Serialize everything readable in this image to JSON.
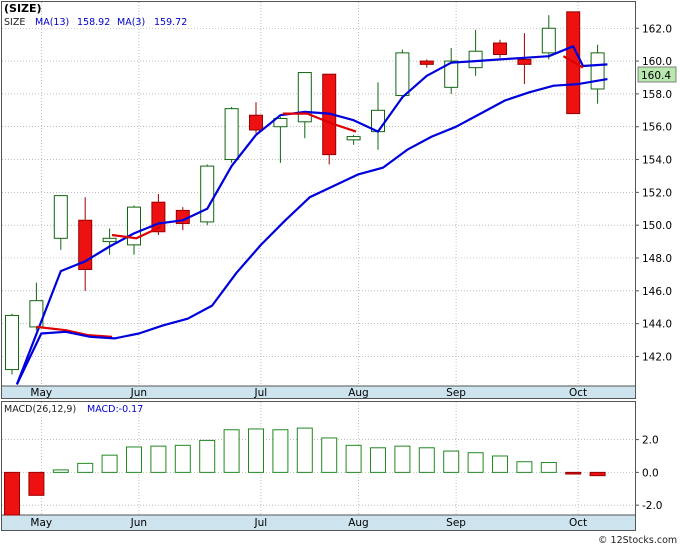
{
  "chart_data": [
    {
      "type": "candlestick",
      "panel": "price",
      "symbol": "(SIZE)",
      "legend": {
        "symbol_label": "SIZE",
        "ma13_label": "MA(13)",
        "ma13_value": "158.92",
        "ma3_label": "MA(3)",
        "ma3_value": "159.72"
      },
      "last_price_label": "160.4",
      "ylim": [
        140.2,
        163.6
      ],
      "yticks": [
        142.0,
        144.0,
        146.0,
        148.0,
        150.0,
        152.0,
        154.0,
        156.0,
        158.0,
        160.0,
        162.0
      ],
      "ytick_labels": [
        "142.0",
        "144.0",
        "146.0",
        "148.0",
        "150.0",
        "152.0",
        "154.0",
        "156.0",
        "158.0",
        "160.0",
        "162.0"
      ],
      "x_month_labels": [
        {
          "label": "May",
          "bar": 1.2
        },
        {
          "label": "Jun",
          "bar": 5.2
        },
        {
          "label": "Jul",
          "bar": 10.2
        },
        {
          "label": "Aug",
          "bar": 14.2
        },
        {
          "label": "Sep",
          "bar": 18.2
        },
        {
          "label": "Oct",
          "bar": 23.2
        }
      ],
      "candles": [
        {
          "open": 141.2,
          "high": 144.6,
          "low": 140.9,
          "close": 144.5,
          "up": true
        },
        {
          "open": 143.8,
          "high": 146.5,
          "low": 143.6,
          "close": 145.4,
          "up": true
        },
        {
          "open": 149.2,
          "high": 151.8,
          "low": 148.5,
          "close": 151.8,
          "up": true
        },
        {
          "open": 150.3,
          "high": 151.7,
          "low": 146.0,
          "close": 147.3,
          "up": false
        },
        {
          "open": 149.0,
          "high": 149.8,
          "low": 148.2,
          "close": 149.2,
          "up": true
        },
        {
          "open": 148.8,
          "high": 151.2,
          "low": 148.2,
          "close": 151.1,
          "up": true
        },
        {
          "open": 151.4,
          "high": 151.9,
          "low": 149.4,
          "close": 149.6,
          "up": false
        },
        {
          "open": 150.9,
          "high": 151.1,
          "low": 149.7,
          "close": 150.1,
          "up": false
        },
        {
          "open": 150.2,
          "high": 153.7,
          "low": 150.0,
          "close": 153.6,
          "up": true
        },
        {
          "open": 154.0,
          "high": 157.2,
          "low": 153.8,
          "close": 157.1,
          "up": true
        },
        {
          "open": 156.7,
          "high": 157.5,
          "low": 155.6,
          "close": 155.8,
          "up": false
        },
        {
          "open": 156.0,
          "high": 156.6,
          "low": 153.8,
          "close": 156.5,
          "up": true
        },
        {
          "open": 156.3,
          "high": 159.3,
          "low": 155.3,
          "close": 159.3,
          "up": true
        },
        {
          "open": 159.2,
          "high": 159.2,
          "low": 153.7,
          "close": 154.3,
          "up": false
        },
        {
          "open": 155.2,
          "high": 155.5,
          "low": 154.9,
          "close": 155.4,
          "up": true
        },
        {
          "open": 155.7,
          "high": 158.7,
          "low": 154.6,
          "close": 157.0,
          "up": true
        },
        {
          "open": 157.9,
          "high": 160.7,
          "low": 157.7,
          "close": 160.5,
          "up": true
        },
        {
          "open": 160.0,
          "high": 160.1,
          "low": 159.6,
          "close": 159.8,
          "up": false
        },
        {
          "open": 158.4,
          "high": 160.8,
          "low": 158.0,
          "close": 160.0,
          "up": true
        },
        {
          "open": 159.6,
          "high": 161.9,
          "low": 159.1,
          "close": 160.6,
          "up": true
        },
        {
          "open": 161.1,
          "high": 161.3,
          "low": 160.2,
          "close": 160.4,
          "up": false
        },
        {
          "open": 160.1,
          "high": 161.7,
          "low": 158.6,
          "close": 159.8,
          "up": false
        },
        {
          "open": 160.5,
          "high": 162.8,
          "low": 160.1,
          "close": 162.0,
          "up": true
        },
        {
          "open": 163.0,
          "high": 163.0,
          "low": 156.8,
          "close": 156.8,
          "up": false
        },
        {
          "open": 158.3,
          "high": 161.0,
          "low": 157.4,
          "close": 160.5,
          "up": true
        }
      ],
      "series": [
        {
          "name": "MA(13)",
          "color": "#0000dd",
          "points": [
            [
              0.2,
              140.3
            ],
            [
              2,
              147.2
            ],
            [
              3,
              147.8
            ],
            [
              4,
              148.7
            ],
            [
              5,
              149.5
            ],
            [
              6,
              150.1
            ],
            [
              7,
              150.3
            ],
            [
              8,
              151.0
            ],
            [
              9,
              153.6
            ],
            [
              10,
              155.5
            ],
            [
              11,
              156.7
            ],
            [
              12,
              156.9
            ],
            [
              13,
              156.8
            ],
            [
              14,
              156.4
            ],
            [
              15,
              155.7
            ],
            [
              16,
              157.8
            ],
            [
              17,
              159.1
            ],
            [
              18,
              159.9
            ],
            [
              19,
              160.0
            ],
            [
              20,
              160.1
            ],
            [
              21,
              160.2
            ],
            [
              22,
              160.3
            ],
            [
              23,
              160.9
            ],
            [
              23.4,
              159.7
            ],
            [
              24.4,
              159.8
            ]
          ]
        },
        {
          "name": "MA(3)",
          "color": "#dd0000",
          "points": [
            [
              1.0,
              143.8
            ],
            [
              2.2,
              143.6
            ],
            [
              3.1,
              143.3
            ],
            [
              4.1,
              143.2
            ]
          ]
        },
        {
          "name": "MA(3)",
          "color": "#dd0000",
          "points": [
            [
              4.1,
              149.4
            ],
            [
              5.1,
              149.2
            ],
            [
              6.1,
              149.9
            ]
          ]
        },
        {
          "name": "MA(3)",
          "color": "#dd0000",
          "points": [
            [
              11.1,
              156.8
            ],
            [
              12.1,
              156.8
            ],
            [
              13.1,
              156.2
            ],
            [
              14.1,
              155.7
            ]
          ]
        },
        {
          "name": "MA(3)",
          "color": "#dd0000",
          "points": [
            [
              22.6,
              160.3
            ],
            [
              23.4,
              159.6
            ]
          ]
        },
        {
          "name": "MA(13)",
          "color": "#0000dd",
          "points": [
            [
              0.2,
              140.3
            ],
            [
              1.2,
              143.4
            ],
            [
              2.2,
              143.5
            ],
            [
              3.2,
              143.2
            ],
            [
              4.2,
              143.1
            ],
            [
              5.2,
              143.4
            ],
            [
              6.2,
              143.9
            ],
            [
              7.2,
              144.3
            ],
            [
              8.2,
              145.1
            ],
            [
              9.2,
              147.1
            ],
            [
              10.2,
              148.8
            ],
            [
              11.2,
              150.3
            ],
            [
              12.2,
              151.7
            ],
            [
              13.2,
              152.4
            ],
            [
              14.2,
              153.1
            ],
            [
              15.2,
              153.5
            ],
            [
              16.2,
              154.6
            ],
            [
              17.2,
              155.4
            ],
            [
              18.2,
              156.0
            ],
            [
              19.2,
              156.8
            ],
            [
              20.2,
              157.6
            ],
            [
              21.2,
              158.1
            ],
            [
              22.2,
              158.5
            ],
            [
              23.2,
              158.6
            ],
            [
              24.4,
              158.9
            ]
          ]
        }
      ]
    },
    {
      "type": "bar",
      "panel": "macd",
      "legend": {
        "label": "MACD(26,12,9)",
        "value_label": "MACD:-0.17"
      },
      "ylim": [
        -2.6,
        3.5
      ],
      "yticks": [
        -2.0,
        0.0,
        2.0
      ],
      "ytick_labels": [
        "-2.0",
        "0.0",
        "2.0"
      ],
      "x_month_labels": [
        {
          "label": "May",
          "bar": 1.2
        },
        {
          "label": "Jun",
          "bar": 5.2
        },
        {
          "label": "Jul",
          "bar": 10.2
        },
        {
          "label": "Aug",
          "bar": 14.2
        },
        {
          "label": "Sep",
          "bar": 18.2
        },
        {
          "label": "Oct",
          "bar": 23.2
        }
      ],
      "values": [
        -2.6,
        -1.4,
        0.15,
        0.55,
        1.05,
        1.55,
        1.6,
        1.65,
        1.95,
        2.6,
        2.65,
        2.6,
        2.7,
        2.1,
        1.65,
        1.5,
        1.6,
        1.5,
        1.3,
        1.2,
        1.0,
        0.65,
        0.6,
        -0.1,
        -0.2
      ],
      "positive_color": "#228822",
      "negative_color": "#dd0000"
    }
  ],
  "footer": {
    "copyright": "© 12Stocks.com"
  }
}
